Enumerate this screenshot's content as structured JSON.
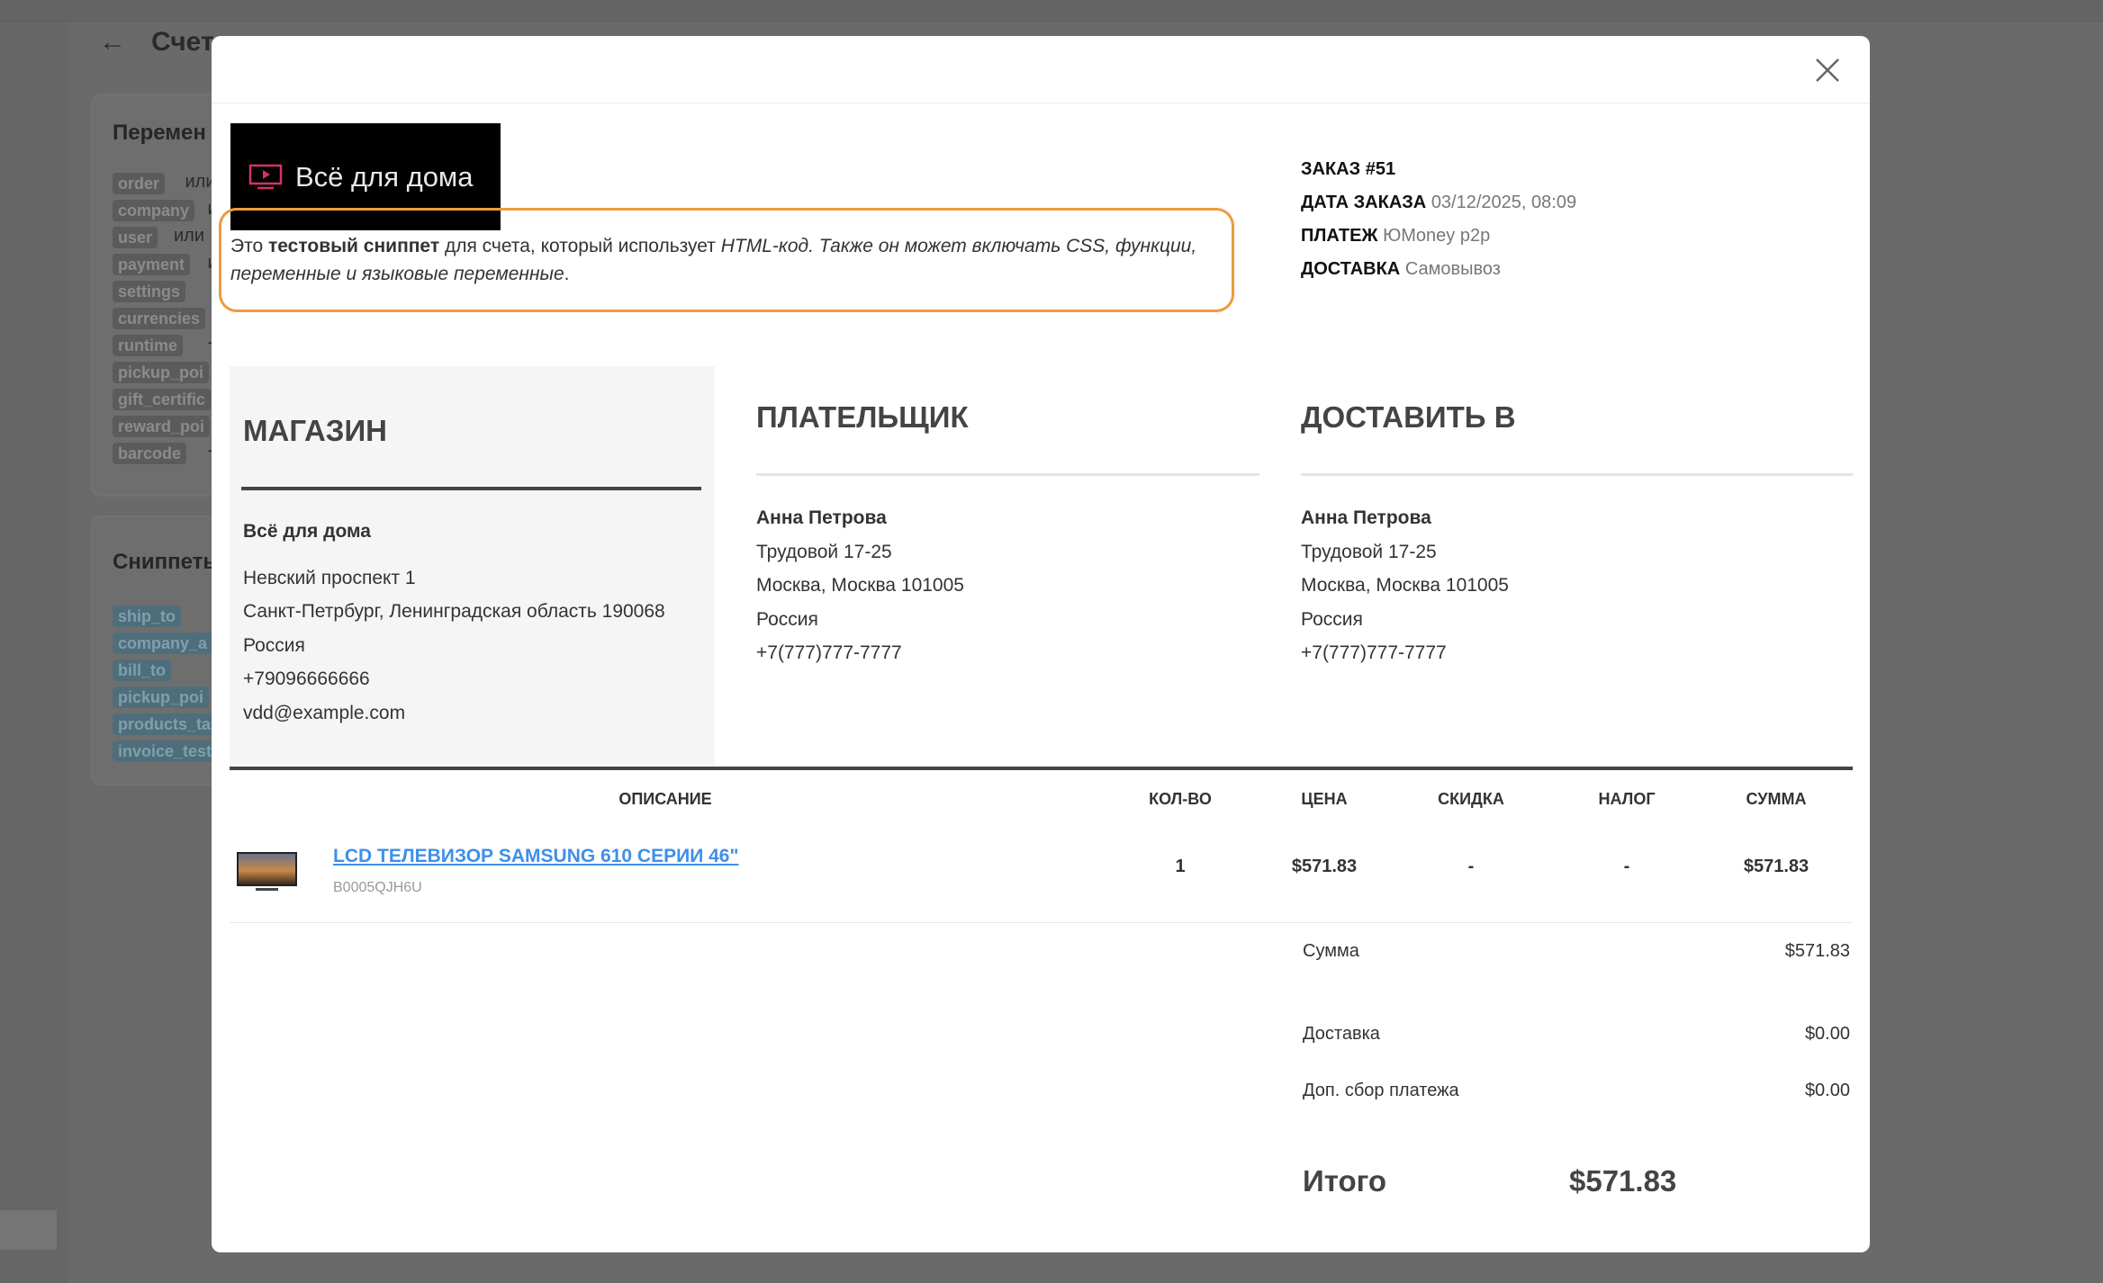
{
  "background": {
    "page_title": "Счет",
    "variables_card": {
      "title": "Перемен",
      "tags": [
        {
          "label": "order",
          "suffix": "или"
        },
        {
          "label": "company",
          "suffix": "и"
        },
        {
          "label": "user",
          "suffix": "или"
        },
        {
          "label": "payment",
          "suffix": "и"
        },
        {
          "label": "settings",
          "suffix": "+"
        },
        {
          "label": "currencies",
          "suffix": ""
        },
        {
          "label": "runtime",
          "suffix": "+"
        },
        {
          "label": "pickup_poi",
          "suffix": ""
        },
        {
          "label": "gift_certific",
          "suffix": ""
        },
        {
          "label": "reward_poi",
          "suffix": ""
        },
        {
          "label": "barcode",
          "suffix": "+"
        }
      ]
    },
    "snippets_card": {
      "title": "Сниппеты",
      "tags": [
        "ship_to",
        "company_a",
        "bill_to",
        "pickup_poi",
        "products_ta",
        "invoice_test"
      ]
    }
  },
  "modal": {
    "logo_text": "Всё для дома",
    "snippet": {
      "p1": "Это ",
      "bold": "тестовый сниппет",
      "p2": " для счета, который использует ",
      "italic": "HTML-код. Также он может включать CSS, функции, переменные и языковые переменные",
      "p3": "."
    },
    "order_info": {
      "order_label": "ЗАКАЗ #51",
      "date_label": "ДАТА ЗАКАЗА",
      "date_value": "03/12/2025, 08:09",
      "payment_label": "ПЛАТЕЖ",
      "payment_value": "ЮMoney p2p",
      "shipping_label": "ДОСТАВКА",
      "shipping_value": "Самовывоз"
    },
    "store": {
      "title": "МАГАЗИН",
      "name": "Всё для дома",
      "lines": [
        "Невский проспект 1",
        "Санкт-Петрбург, Ленинградская область 190068",
        "Россия",
        "+79096666666",
        "vdd@example.com"
      ]
    },
    "payer": {
      "title": "ПЛАТЕЛЬЩИК",
      "name": "Анна Петрова",
      "lines": [
        "Трудовой 17-25",
        "Москва, Москва 101005",
        "Россия",
        "+7(777)777-7777"
      ]
    },
    "ship_to": {
      "title": "ДОСТАВИТЬ В",
      "name": "Анна Петрова",
      "lines": [
        "Трудовой 17-25",
        "Москва, Москва 101005",
        "Россия",
        "+7(777)777-7777"
      ]
    },
    "table": {
      "headers": [
        "ОПИСАНИЕ",
        "КОЛ-ВО",
        "ЦЕНА",
        "СКИДКА",
        "НАЛОГ",
        "СУММА"
      ],
      "rows": [
        {
          "product": "LCD ТЕЛЕВИЗОР SAMSUNG 610 СЕРИИ 46\"",
          "sku": "B0005QJH6U",
          "qty": "1",
          "price": "$571.83",
          "discount": "-",
          "tax": "-",
          "total": "$571.83"
        }
      ]
    },
    "totals": {
      "subtotal_label": "Сумма",
      "subtotal": "$571.83",
      "shipping_label": "Доставка",
      "shipping": "$0.00",
      "surcharge_label": "Доп. сбор платежа",
      "surcharge": "$0.00",
      "grand_label": "Итого",
      "grand": "$571.83"
    },
    "colors": {
      "snippet_border": "#ef9a3c",
      "link": "#3f8fe8"
    }
  }
}
